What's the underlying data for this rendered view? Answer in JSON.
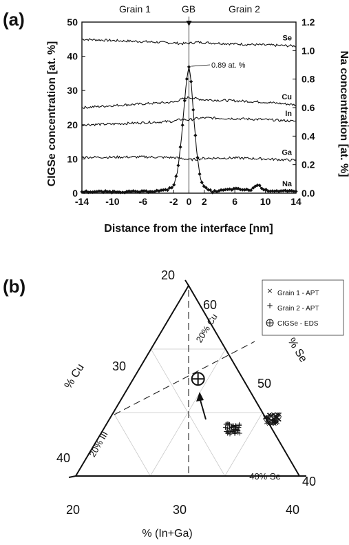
{
  "chart_data": [
    {
      "panel": "(a)",
      "type": "line",
      "xlabel": "Distance from the interface [nm]",
      "ylabel_left": "CIGSe concentration [at. %]",
      "ylabel_right": "Na concentration [at. %]",
      "xlim": [
        -14,
        14
      ],
      "ylim_left": [
        0,
        50
      ],
      "ylim_right": [
        0,
        1.2
      ],
      "x_ticks": [
        -14,
        -10,
        -6,
        -2,
        0,
        2,
        6,
        10,
        14
      ],
      "y_left_ticks": [
        0,
        10,
        20,
        30,
        40,
        50
      ],
      "y_right_ticks": [
        "0.0",
        "0.2",
        "0.4",
        "0.6",
        "0.8",
        "1.0",
        "1.2"
      ],
      "top_labels": [
        "Grain 1",
        "GB",
        "Grain 2"
      ],
      "annotation": "0.89 at. %",
      "series": [
        {
          "name": "Se",
          "axis": "left",
          "x": [
            -14,
            -10,
            -6,
            -2,
            -1,
            0,
            1,
            2,
            6,
            10,
            14
          ],
          "values": [
            45,
            44.6,
            44.3,
            43.9,
            43.7,
            43.8,
            44.1,
            44.0,
            43.6,
            43.3,
            43.0
          ]
        },
        {
          "name": "Cu",
          "axis": "left",
          "x": [
            -14,
            -10,
            -6,
            -2,
            -1,
            0,
            1,
            2,
            6,
            10,
            14
          ],
          "values": [
            25,
            25.6,
            26.1,
            26.6,
            27.4,
            28.0,
            27.6,
            27.3,
            27.0,
            26.6,
            25.8
          ]
        },
        {
          "name": "In",
          "axis": "left",
          "x": [
            -14,
            -10,
            -6,
            -2,
            -1,
            0,
            1,
            2,
            6,
            10,
            14
          ],
          "values": [
            20,
            20.2,
            20.6,
            21.0,
            21.6,
            21.4,
            21.8,
            22.0,
            21.8,
            21.5,
            21.0
          ]
        },
        {
          "name": "Ga",
          "axis": "left",
          "x": [
            -14,
            -10,
            -6,
            -2,
            -1,
            0,
            1,
            2,
            6,
            10,
            14
          ],
          "values": [
            10.5,
            10.5,
            10.6,
            10.4,
            10.2,
            9.8,
            9.9,
            10.2,
            10.3,
            10.0,
            9.6
          ]
        },
        {
          "name": "Na",
          "axis": "right",
          "x": [
            -14,
            -10,
            -6,
            -3,
            -2,
            -1.5,
            -1,
            -0.6,
            -0.3,
            0,
            0.3,
            0.6,
            1,
            1.5,
            2,
            3,
            6,
            8,
            9,
            10,
            14
          ],
          "values": [
            0.01,
            0.01,
            0.01,
            0.02,
            0.05,
            0.15,
            0.38,
            0.62,
            0.8,
            0.89,
            0.78,
            0.55,
            0.3,
            0.1,
            0.04,
            0.01,
            0.03,
            0.02,
            0.06,
            0.02,
            0.01
          ]
        }
      ]
    },
    {
      "panel": "(b)",
      "type": "scatter",
      "xlabel": "% (In+Ga)",
      "left_axis_label": "% Cu",
      "right_axis_label": "% Se",
      "bottom_ticks": [
        "20",
        "30",
        "40"
      ],
      "left_ticks": [
        "20",
        "30",
        "40"
      ],
      "right_ticks": [
        "60",
        "50",
        "40"
      ],
      "inner_labels": [
        "20% Cu",
        "20% III",
        "40% Se"
      ],
      "legend": [
        "Grain 1 - APT",
        "Grain 2 - APT",
        "CIGSe - EDS"
      ],
      "series": [
        {
          "name": "Grain 1 - APT",
          "marker": "x",
          "center_in_ga": 37.5,
          "center_se": 46.0,
          "count": 45
        },
        {
          "name": "Grain 2 - APT",
          "marker": "+",
          "center_in_ga": 34.0,
          "center_se": 45.0,
          "count": 45
        },
        {
          "name": "CIGSe - EDS",
          "marker": "circle-plus",
          "in_ga": 30.9,
          "se": 50.2
        }
      ]
    }
  ]
}
